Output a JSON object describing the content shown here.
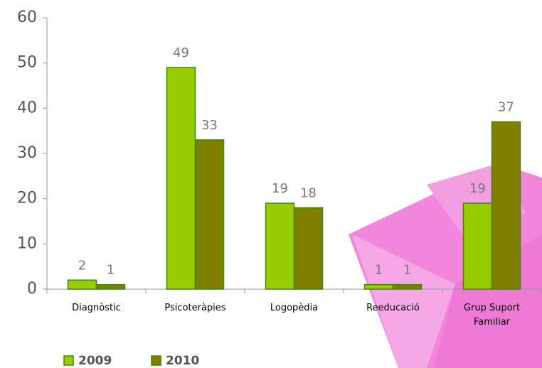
{
  "chart_data": {
    "type": "bar",
    "categories": [
      "Diagnòstic",
      "Psicoteràpies",
      "Logopèdia",
      "Reeducació",
      "Grup Suport Familiar"
    ],
    "series": [
      {
        "name": "2009",
        "color": "#99cc00",
        "values": [
          2,
          49,
          19,
          1,
          19
        ]
      },
      {
        "name": "2010",
        "color": "#808000",
        "values": [
          1,
          33,
          18,
          1,
          37
        ]
      }
    ],
    "ylim": [
      0,
      60
    ],
    "yticks": [
      0,
      10,
      20,
      30,
      40,
      50,
      60
    ],
    "grid": false,
    "legend": "bottom"
  }
}
